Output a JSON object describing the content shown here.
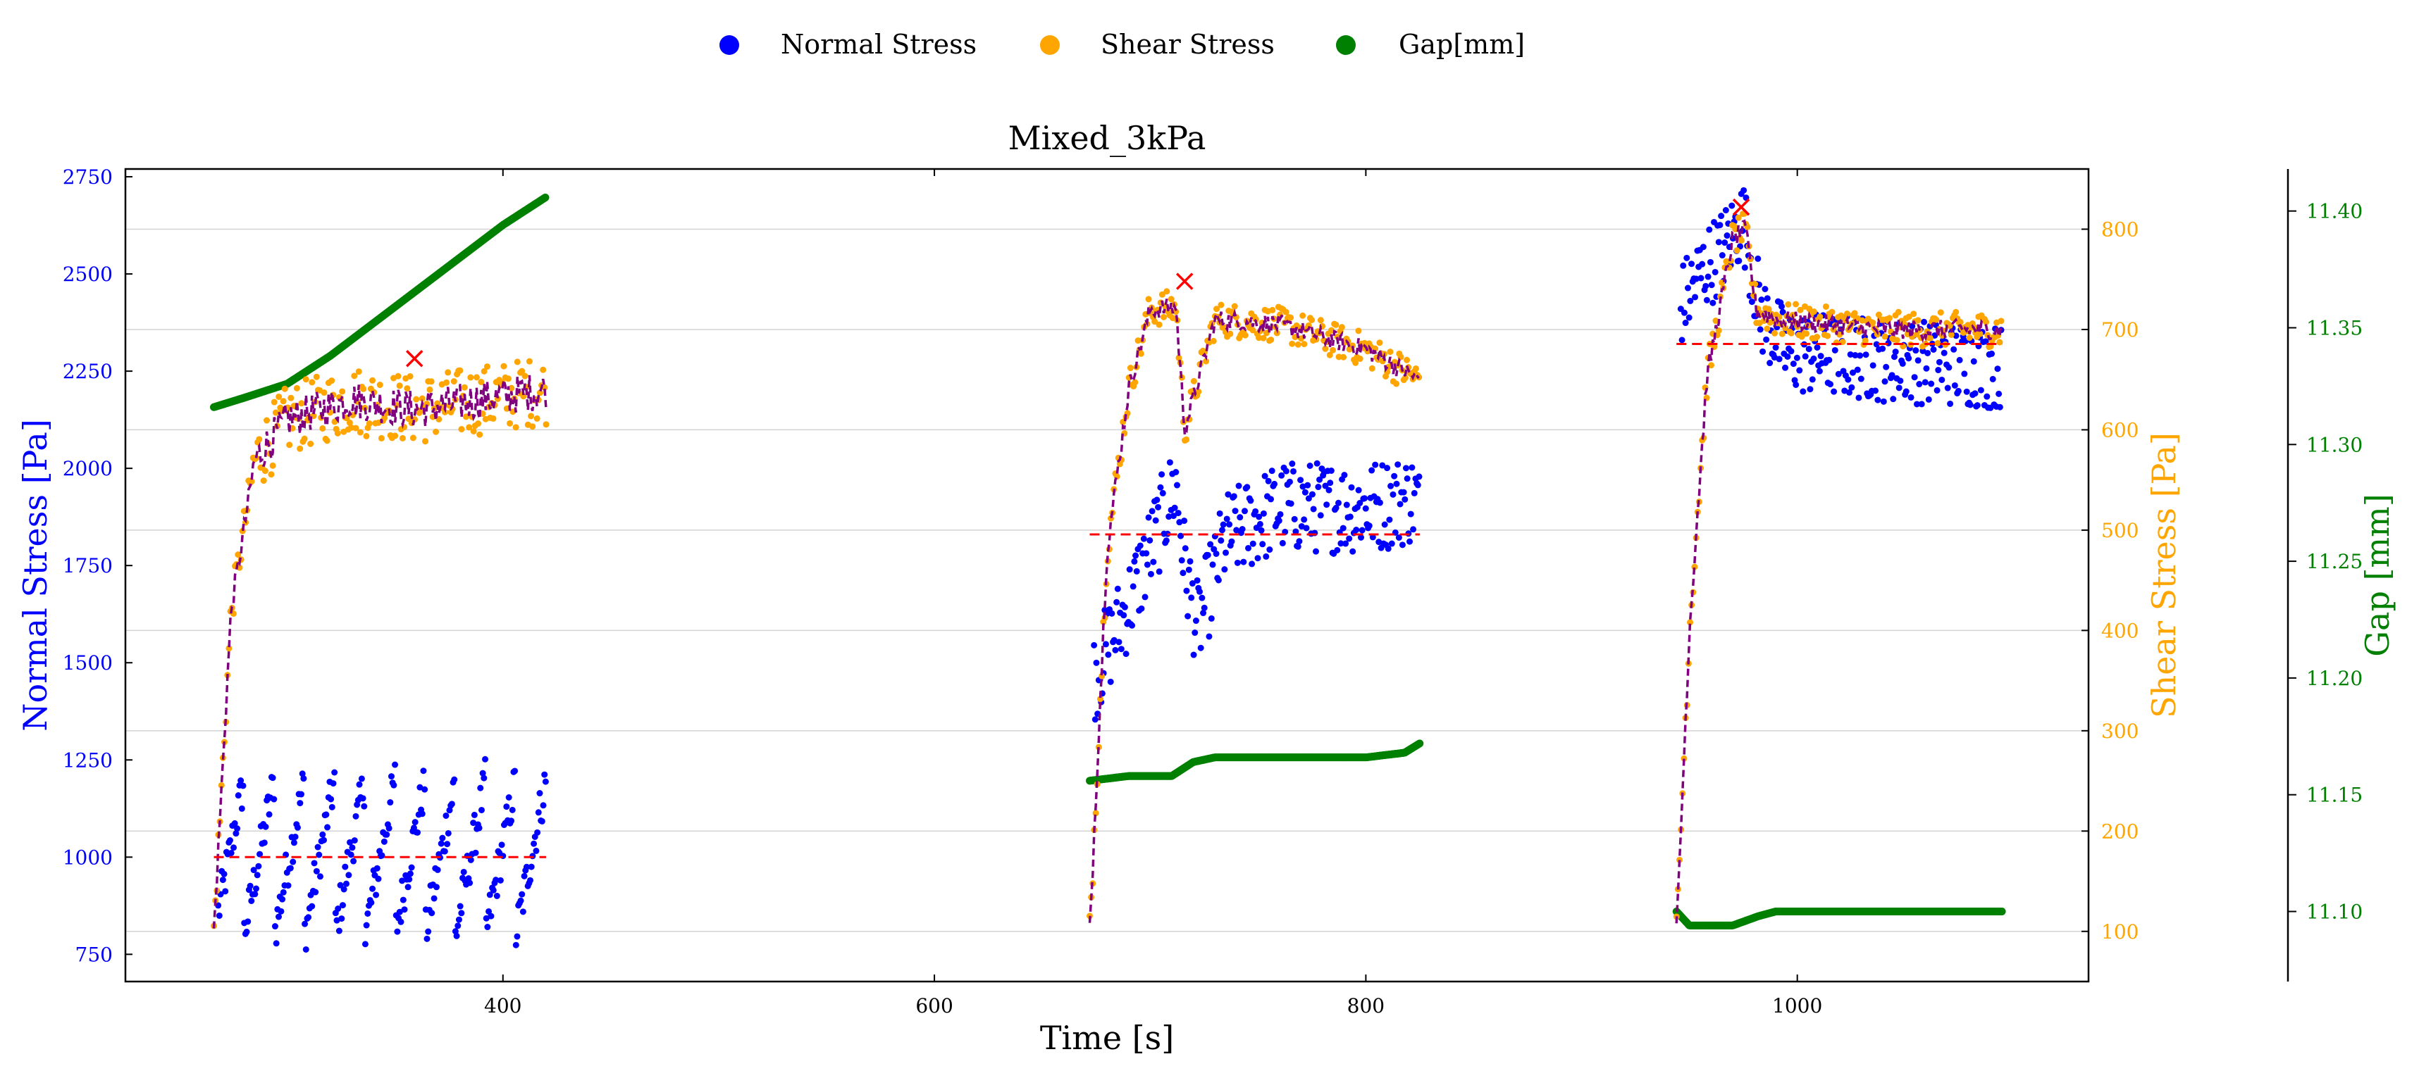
{
  "chart_data": {
    "type": "scatter",
    "title": "Mixed_3kPa",
    "xlabel": "Time [s]",
    "ylabel_left": "Normal Stress [Pa]",
    "ylabel_right1": "Shear Stress [Pa]",
    "ylabel_right2": "Gap [mm]",
    "xlim": [
      225,
      1135
    ],
    "ylim_normal": [
      680,
      2770
    ],
    "ylim_shear": [
      50,
      860
    ],
    "ylim_gap": [
      11.07,
      11.418
    ],
    "x_ticks": [
      400,
      600,
      800,
      1000
    ],
    "normal_ticks": [
      750,
      1000,
      1250,
      1500,
      1750,
      2000,
      2250,
      2500,
      2750
    ],
    "shear_ticks": [
      100,
      200,
      300,
      400,
      500,
      600,
      700,
      800
    ],
    "gap_ticks": [
      "11.10",
      "11.15",
      "11.20",
      "11.25",
      "11.30",
      "11.35",
      "11.40"
    ],
    "grid": "horizontal",
    "legend": {
      "placement": "top-center",
      "entries": [
        {
          "label": "Normal Stress",
          "color": "#0000ff"
        },
        {
          "label": "Shear Stress",
          "color": "#ffa500"
        },
        {
          "label": "Gap[mm]",
          "color": "#008000"
        }
      ]
    },
    "colors": {
      "normal": "#0000ff",
      "shear": "#ffa500",
      "gap": "#008000",
      "smooth": "#800080",
      "reference": "#ff0000",
      "peak": "#ff0000"
    },
    "segments": [
      {
        "t_start": 266,
        "t_end": 420,
        "normal_mean": 1000,
        "normal_spread": 200,
        "shear_profile": [
          [
            266,
            100
          ],
          [
            274,
            420
          ],
          [
            285,
            570
          ],
          [
            300,
            610
          ],
          [
            330,
            630
          ],
          [
            360,
            620
          ],
          [
            420,
            640
          ]
        ],
        "shear_reference": 620,
        "normal_reference": 1000,
        "peak": [
          359,
          671
        ],
        "gap_profile": [
          [
            266,
            11.316
          ],
          [
            280,
            11.32
          ],
          [
            300,
            11.326
          ],
          [
            320,
            11.338
          ],
          [
            340,
            11.352
          ],
          [
            360,
            11.366
          ],
          [
            380,
            11.38
          ],
          [
            400,
            11.394
          ],
          [
            420,
            11.406
          ]
        ]
      },
      {
        "t_start": 672,
        "t_end": 825,
        "normal_profile": [
          [
            672,
            1440
          ],
          [
            690,
            1650
          ],
          [
            705,
            1860
          ],
          [
            712,
            1960
          ],
          [
            716,
            1750
          ],
          [
            722,
            1590
          ],
          [
            735,
            1820
          ],
          [
            760,
            1900
          ],
          [
            800,
            1900
          ],
          [
            820,
            1920
          ]
        ],
        "normal_spread": 120,
        "shear_profile": [
          [
            672,
            100
          ],
          [
            680,
            480
          ],
          [
            690,
            640
          ],
          [
            700,
            720
          ],
          [
            712,
            722
          ],
          [
            716,
            600
          ],
          [
            730,
            710
          ],
          [
            760,
            705
          ],
          [
            800,
            680
          ],
          [
            825,
            650
          ]
        ],
        "shear_reference": 710,
        "normal_reference": 1830,
        "peak": [
          716,
          748
        ],
        "gap_profile": [
          [
            672,
            11.156
          ],
          [
            690,
            11.158
          ],
          [
            710,
            11.158
          ],
          [
            720,
            11.164
          ],
          [
            730,
            11.166
          ],
          [
            760,
            11.166
          ],
          [
            800,
            11.166
          ],
          [
            818,
            11.168
          ],
          [
            825,
            11.172
          ]
        ]
      },
      {
        "t_start": 944,
        "t_end": 1095,
        "normal_profile": [
          [
            944,
            2400
          ],
          [
            955,
            2500
          ],
          [
            965,
            2560
          ],
          [
            975,
            2640
          ],
          [
            983,
            2400
          ],
          [
            995,
            2300
          ],
          [
            1040,
            2280
          ],
          [
            1095,
            2260
          ]
        ],
        "normal_spread": 110,
        "shear_profile": [
          [
            944,
            100
          ],
          [
            950,
            400
          ],
          [
            958,
            650
          ],
          [
            970,
            790
          ],
          [
            976,
            800
          ],
          [
            981,
            720
          ],
          [
            990,
            710
          ],
          [
            1040,
            700
          ],
          [
            1095,
            700
          ]
        ],
        "shear_reference": 690,
        "normal_reference": 2320,
        "peak": [
          974,
          822
        ],
        "gap_profile": [
          [
            944,
            11.1
          ],
          [
            950,
            11.094
          ],
          [
            970,
            11.094
          ],
          [
            982,
            11.098
          ],
          [
            990,
            11.1
          ],
          [
            1040,
            11.1
          ],
          [
            1095,
            11.1
          ]
        ]
      }
    ]
  }
}
